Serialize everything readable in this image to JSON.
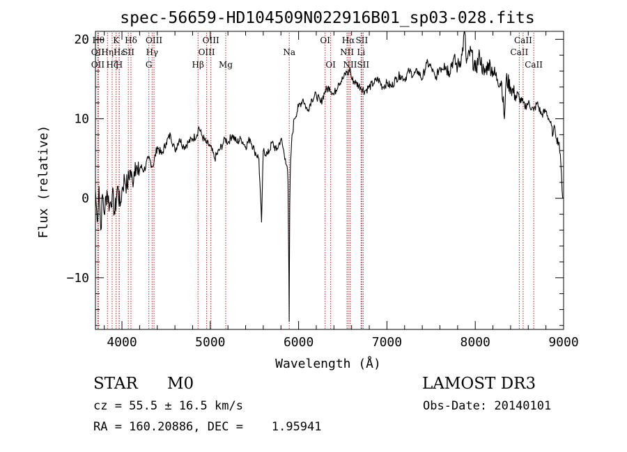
{
  "chart_data": {
    "type": "line",
    "title": "spec-56659-HD104509N022916B01_sp03-028.fits",
    "xlabel": "Wavelength (Å)",
    "ylabel": "Flux (relative)",
    "xlim": [
      3700,
      9000
    ],
    "ylim": [
      -16.5,
      21
    ],
    "x_ticks": [
      4000,
      5000,
      6000,
      7000,
      8000,
      9000
    ],
    "x_tick_labels": [
      "4000",
      "5000",
      "6000",
      "7000",
      "8000",
      "9000"
    ],
    "y_ticks": [
      20,
      10,
      0,
      -10
    ],
    "y_tick_labels": [
      "20",
      "10",
      "0",
      "−10"
    ],
    "grid": false,
    "series": [
      {
        "name": "flux",
        "x": [
          3700,
          3720,
          3740,
          3760,
          3780,
          3800,
          3830,
          3860,
          3890,
          3920,
          3950,
          3980,
          4000,
          4030,
          4060,
          4090,
          4120,
          4150,
          4180,
          4210,
          4250,
          4300,
          4350,
          4400,
          4450,
          4500,
          4550,
          4600,
          4650,
          4700,
          4750,
          4800,
          4850,
          4870,
          4900,
          4950,
          5000,
          5050,
          5100,
          5150,
          5170,
          5200,
          5250,
          5300,
          5350,
          5400,
          5450,
          5500,
          5550,
          5580,
          5600,
          5650,
          5700,
          5750,
          5800,
          5850,
          5870,
          5880,
          5890,
          5893,
          5896,
          5900,
          5905,
          5920,
          5950,
          6000,
          6050,
          6100,
          6150,
          6200,
          6250,
          6300,
          6350,
          6400,
          6450,
          6500,
          6550,
          6563,
          6580,
          6600,
          6650,
          6700,
          6750,
          6800,
          6850,
          6900,
          6950,
          7000,
          7050,
          7100,
          7150,
          7200,
          7250,
          7300,
          7350,
          7400,
          7450,
          7500,
          7550,
          7600,
          7650,
          7700,
          7750,
          7800,
          7850,
          7880,
          7900,
          7950,
          8000,
          8050,
          8100,
          8150,
          8200,
          8250,
          8300,
          8330,
          8350,
          8400,
          8450,
          8500,
          8542,
          8560,
          8600,
          8662,
          8700,
          8750,
          8800,
          8850,
          8880,
          8900,
          8920,
          8950,
          8970,
          8990
        ],
        "values": [
          1,
          -3,
          1.5,
          -4,
          0.5,
          -2,
          1,
          -1,
          0.5,
          -2,
          1.5,
          -1,
          1,
          2.5,
          1.5,
          3.5,
          2,
          4.5,
          3,
          4,
          3.5,
          5,
          4,
          6.5,
          5.5,
          7,
          8,
          6,
          7.5,
          6.5,
          7,
          7.5,
          8,
          9,
          8,
          7,
          6.5,
          5,
          6,
          7,
          7.5,
          7,
          8,
          7,
          7.5,
          6.5,
          7.5,
          6,
          5,
          -3,
          6,
          5.5,
          7,
          6,
          7.5,
          5,
          4,
          2,
          -10,
          -15.5,
          -9,
          -1,
          3,
          7,
          10,
          11.5,
          12.5,
          11,
          12.5,
          13,
          12,
          13.5,
          14,
          13,
          14.5,
          15,
          16,
          15.5,
          16.5,
          15,
          14.5,
          14,
          13.5,
          14,
          14.5,
          15,
          14,
          14.5,
          14,
          15,
          15.5,
          15,
          16,
          15.5,
          16,
          15,
          17,
          16.5,
          15,
          16.5,
          17,
          16,
          17.5,
          16.5,
          18,
          21,
          17,
          18.5,
          16,
          18,
          15.5,
          17,
          16,
          15,
          14.5,
          10,
          15,
          14,
          13,
          12.5,
          12,
          11.5,
          12,
          11,
          12,
          10.5,
          11,
          9.5,
          8,
          9,
          7.5,
          7,
          4,
          0
        ]
      }
    ],
    "lines": [
      {
        "label": "Hθ",
        "x": 3734,
        "row": 1
      },
      {
        "label": "OII",
        "x": 3727,
        "row": 2
      },
      {
        "label": "OII",
        "x": 3727,
        "row": 3
      },
      {
        "label": "Hη",
        "x": 3836,
        "row": 2
      },
      {
        "label": "Hζ",
        "x": 3889,
        "row": 3
      },
      {
        "label": "K",
        "x": 3934,
        "row": 1
      },
      {
        "label": "H",
        "x": 3968,
        "row": 3
      },
      {
        "label": "Hε",
        "x": 3970,
        "row": 2
      },
      {
        "label": "SII",
        "x": 4072,
        "row": 2
      },
      {
        "label": "Hδ",
        "x": 4102,
        "row": 1
      },
      {
        "label": "Hγ",
        "x": 4341,
        "row": 2
      },
      {
        "label": "G",
        "x": 4305,
        "row": 3
      },
      {
        "label": "OIII",
        "x": 4363,
        "row": 1
      },
      {
        "label": "Hβ",
        "x": 4861,
        "row": 3
      },
      {
        "label": "OIII",
        "x": 4959,
        "row": 2
      },
      {
        "label": "OIII",
        "x": 5007,
        "row": 1
      },
      {
        "label": "Mg",
        "x": 5175,
        "row": 3
      },
      {
        "label": "Na",
        "x": 5894,
        "row": 2
      },
      {
        "label": "OI",
        "x": 6300,
        "row": 1
      },
      {
        "label": "OI",
        "x": 6363,
        "row": 3
      },
      {
        "label": "NII",
        "x": 6548,
        "row": 2
      },
      {
        "label": "NII",
        "x": 6583,
        "row": 3
      },
      {
        "label": "Hα",
        "x": 6563,
        "row": 1
      },
      {
        "label": "SII",
        "x": 6716,
        "row": 1
      },
      {
        "label": "Li",
        "x": 6707,
        "row": 2
      },
      {
        "label": "SII",
        "x": 6731,
        "row": 3
      },
      {
        "label": "CaII",
        "x": 8498,
        "row": 2
      },
      {
        "label": "CaII",
        "x": 8542,
        "row": 1
      },
      {
        "label": "CaII",
        "x": 8662,
        "row": 3
      }
    ]
  },
  "info": {
    "object_class": "STAR",
    "subclass": "M0",
    "survey": "LAMOST DR3",
    "cz": "cz = 55.5 ± 16.5 km/s",
    "obs_date": "Obs-Date: 20140101",
    "radec": "RA = 160.20886, DEC =    1.95941"
  }
}
